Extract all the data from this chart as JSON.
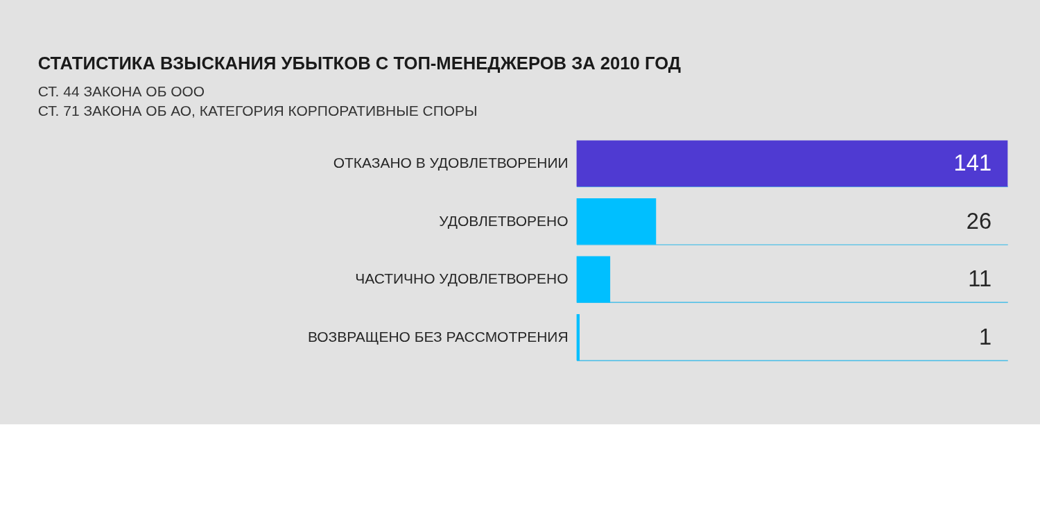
{
  "chart_data": {
    "type": "bar",
    "orientation": "horizontal",
    "title": "СТАТИСТИКА ВЗЫСКАНИЯ УБЫТКОВ С ТОП-МЕНЕДЖЕРОВ ЗА 2010 ГОД",
    "subtitle": "СТ. 44 ЗАКОНА ОБ ООО\nСТ. 71 ЗАКОНА ОБ АО, КАТЕГОРИЯ КОРПОРАТИВНЫЕ СПОРЫ",
    "categories": [
      "ОТКАЗАНО В УДОВЛЕТВОРЕНИИ",
      "УДОВЛЕТВОРЕНО",
      "ЧАСТИЧНО УДОВЛЕТВОРЕНО",
      "ВОЗВРАЩЕНО БЕЗ РАССМОТРЕНИЯ"
    ],
    "values": [
      141,
      26,
      11,
      1
    ],
    "colors": [
      "#4f3ad2",
      "#00bfff",
      "#00bfff",
      "#00bfff"
    ],
    "data_labels": true,
    "grid": "y"
  }
}
